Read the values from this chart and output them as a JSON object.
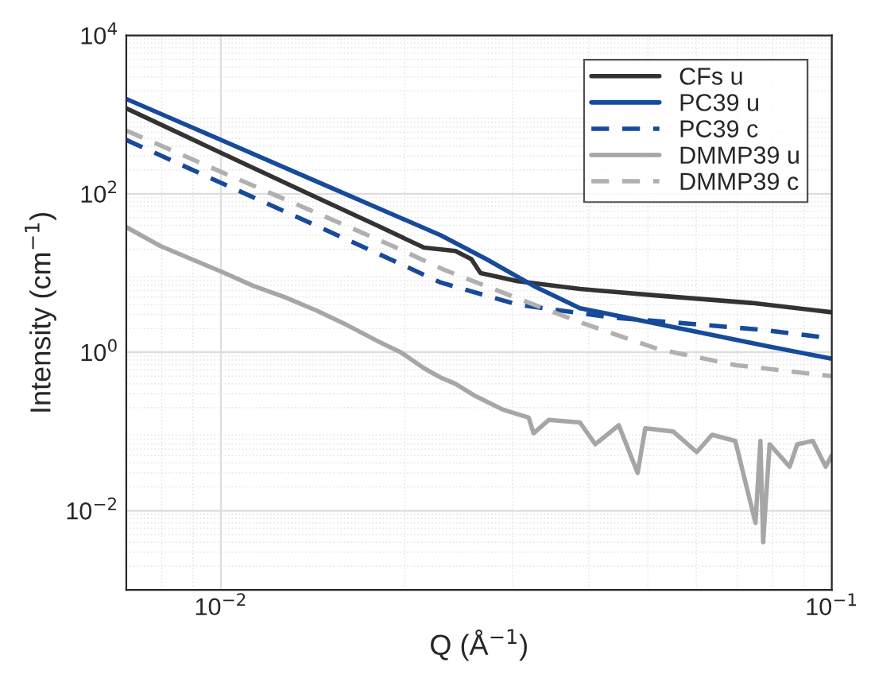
{
  "chart_data": {
    "type": "line",
    "xlabel": "Q (Å$^{−1}$)",
    "ylabel": "Intensity (cm$^{−1}$)",
    "log": "xy",
    "xlim": [
      0.007,
      0.1
    ],
    "ylim": [
      0.001,
      10000
    ],
    "xticks": [
      {
        "value": 0.01,
        "label": "10$^{−2}$"
      },
      {
        "value": 0.1,
        "label": "10$^{−1}$"
      }
    ],
    "yticks": [
      {
        "value": 0.01,
        "label": "10$^{−2}$"
      },
      {
        "value": 1,
        "label": "10$^{0}$"
      },
      {
        "value": 100,
        "label": "10$^{2}$"
      },
      {
        "value": 10000,
        "label": "10$^{4}$"
      }
    ],
    "grid": true,
    "legend": "top right",
    "series": [
      {
        "name": "CFs u",
        "color": "#333333",
        "line_style": "solid",
        "x": [
          0.007,
          0.01,
          0.0143,
          0.018,
          0.0215,
          0.0242,
          0.0257,
          0.0266,
          0.0306,
          0.0387,
          0.0519,
          0.0738,
          0.1
        ],
        "values": [
          1200,
          330,
          91,
          40,
          21,
          19,
          15,
          10,
          7.9,
          6.3,
          5.2,
          4.2,
          3.2
        ]
      },
      {
        "name": "PC39 u",
        "color": "#174a9a",
        "line_style": "solid",
        "x": [
          0.007,
          0.01,
          0.0143,
          0.0191,
          0.0229,
          0.0272,
          0.0325,
          0.0387,
          0.0436,
          0.0584,
          0.0781,
          0.1
        ],
        "values": [
          1580,
          480,
          145,
          55,
          30,
          15,
          6.9,
          3.6,
          3.0,
          1.9,
          1.2,
          0.83
        ]
      },
      {
        "name": "PC39 c",
        "color": "#174a9a",
        "line_style": "dashed",
        "x": [
          0.007,
          0.01,
          0.0143,
          0.0191,
          0.0229,
          0.0306,
          0.0436,
          0.0584,
          0.0781,
          0.1
        ],
        "values": [
          480,
          138,
          40,
          14.5,
          7.6,
          4.0,
          2.75,
          2.3,
          1.9,
          1.5
        ]
      },
      {
        "name": "DMMP39 u",
        "color": "#a6a6a6",
        "line_style": "solid",
        "x": [
          0.007,
          0.00796,
          0.00895,
          0.01,
          0.0113,
          0.0127,
          0.0143,
          0.0161,
          0.018,
          0.0197,
          0.0215,
          0.0229,
          0.0242,
          0.0261,
          0.0289,
          0.0319,
          0.0325,
          0.0344,
          0.0387,
          0.041,
          0.0448,
          0.0481,
          0.0495,
          0.055,
          0.0601,
          0.0637,
          0.0695,
          0.075,
          0.0764,
          0.0772,
          0.0791,
          0.0853,
          0.0878,
          0.0931,
          0.0977,
          0.1
        ],
        "values": [
          38,
          22,
          15,
          10.5,
          6.9,
          5.0,
          3.4,
          2.2,
          1.4,
          1.0,
          0.63,
          0.48,
          0.4,
          0.28,
          0.19,
          0.15,
          0.095,
          0.14,
          0.13,
          0.069,
          0.12,
          0.03,
          0.11,
          0.1,
          0.055,
          0.091,
          0.076,
          0.007,
          0.076,
          0.004,
          0.069,
          0.036,
          0.069,
          0.076,
          0.036,
          0.05
        ]
      },
      {
        "name": "DMMP39 c",
        "color": "#b0b0b0",
        "line_style": "dashed",
        "x": [
          0.007,
          0.01,
          0.0143,
          0.0191,
          0.0232,
          0.0306,
          0.0387,
          0.0519,
          0.0695,
          0.1
        ],
        "values": [
          630,
          190,
          58,
          22,
          11,
          4.8,
          2.4,
          1.1,
          0.69,
          0.5
        ]
      }
    ]
  }
}
